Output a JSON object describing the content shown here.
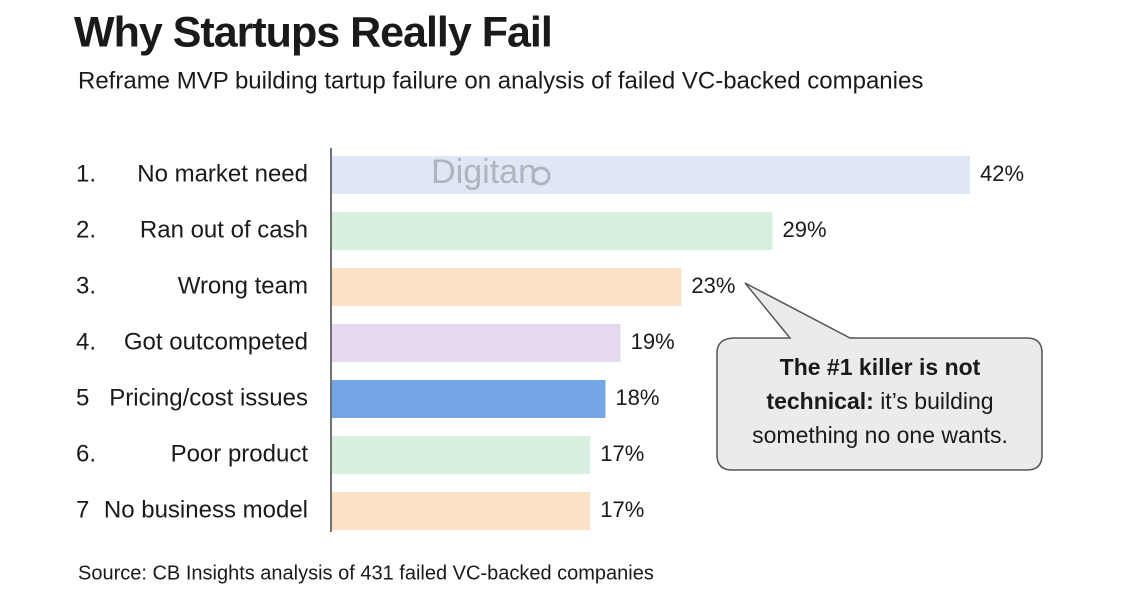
{
  "chart_data": {
    "type": "bar",
    "orientation": "horizontal",
    "title": "Why Startups Really Fail",
    "subtitle": "Reframe MVP building tartup failure on analysis of failed VC-backed companies",
    "watermark": "Digitan",
    "ranks": [
      "1.",
      "2.",
      "3.",
      "4.",
      "5",
      "6.",
      "7"
    ],
    "categories": [
      "No market need",
      "Ran out of cash",
      "Wrong team",
      "Got outcompeted",
      "Pricing/cost issues",
      "Poor product",
      "No business model"
    ],
    "values": [
      42,
      29,
      23,
      19,
      18,
      17,
      17
    ],
    "value_labels": [
      "42%",
      "29%",
      "23%",
      "19%",
      "18%",
      "17%",
      "17%"
    ],
    "colors": [
      "#dfe7f4",
      "#d8f0e0",
      "#fbe1c8",
      "#e5d9f0",
      "#74a6e6",
      "#d8f0e0",
      "#fbe1c8"
    ],
    "annotation": {
      "emphasis": "The #1 killer is not technical:",
      "text": "it’s building something no one wants."
    },
    "source": "Source: CB Insights analysis of 431 failed VC-backed companies"
  }
}
